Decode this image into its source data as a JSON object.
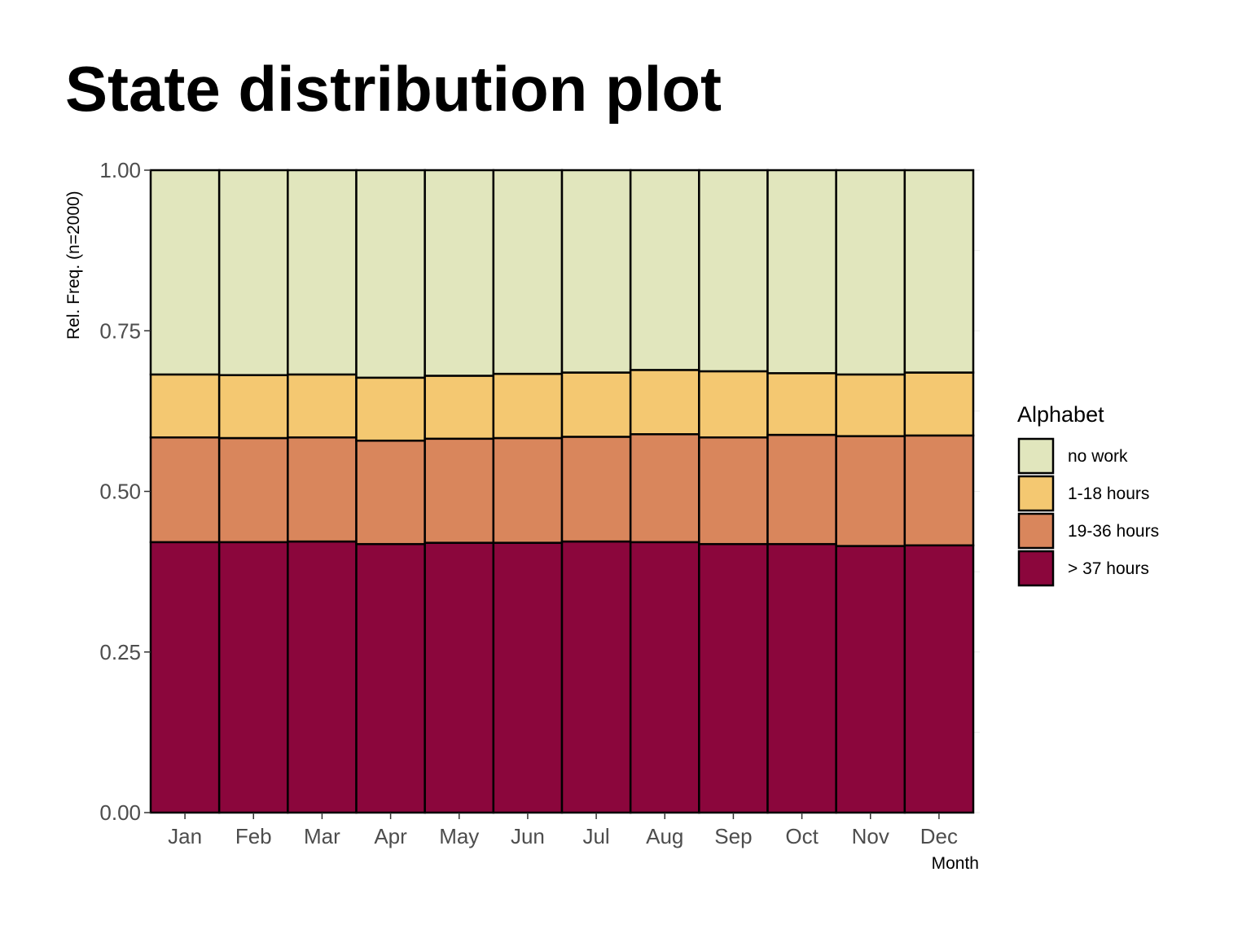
{
  "chart_data": {
    "type": "bar",
    "stacked": true,
    "title": "State distribution plot",
    "xlabel": "Month",
    "ylabel": "Rel. Freq. (n=2000)",
    "ylim": [
      0,
      1
    ],
    "yticks": [
      "0.00",
      "0.25",
      "0.50",
      "0.75",
      "1.00"
    ],
    "grid": true,
    "legend_title": "Alphabet",
    "legend_position": "right",
    "categories": [
      "Jan",
      "Feb",
      "Mar",
      "Apr",
      "May",
      "Jun",
      "Jul",
      "Aug",
      "Sep",
      "Oct",
      "Nov",
      "Dec"
    ],
    "series": [
      {
        "name": "> 37 hours",
        "color": "#8b063c",
        "values": [
          0.421,
          0.421,
          0.422,
          0.418,
          0.42,
          0.42,
          0.422,
          0.421,
          0.418,
          0.418,
          0.415,
          0.416
        ]
      },
      {
        "name": "19-36 hours",
        "color": "#d9865c",
        "values": [
          0.163,
          0.162,
          0.162,
          0.161,
          0.162,
          0.163,
          0.163,
          0.168,
          0.166,
          0.17,
          0.171,
          0.171
        ]
      },
      {
        "name": "1-18 hours",
        "color": "#f4c871",
        "values": [
          0.098,
          0.098,
          0.098,
          0.098,
          0.098,
          0.1,
          0.1,
          0.1,
          0.103,
          0.096,
          0.096,
          0.098
        ]
      },
      {
        "name": "no work",
        "color": "#e1e6bd",
        "values": [
          0.318,
          0.319,
          0.318,
          0.323,
          0.32,
          0.317,
          0.315,
          0.311,
          0.313,
          0.316,
          0.318,
          0.315
        ]
      }
    ],
    "legend_order": [
      "no work",
      "1-18 hours",
      "19-36 hours",
      "> 37 hours"
    ]
  }
}
